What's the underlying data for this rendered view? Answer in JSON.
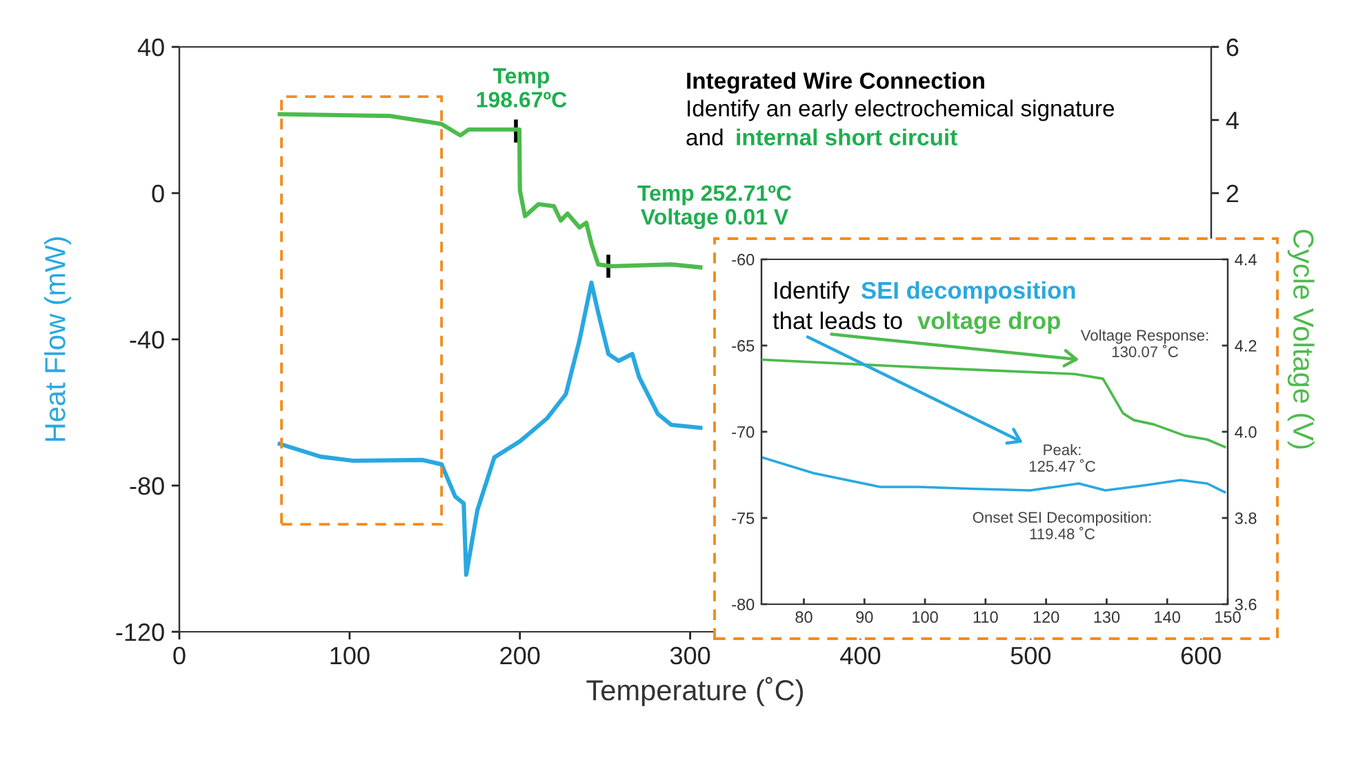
{
  "chart_data": [
    {
      "type": "line",
      "xlabel": "Temperature (˚C)",
      "ylabel": "Heat Flow (mW)",
      "y2label": "Cycle Voltage (V)",
      "xlim": [
        0,
        606
      ],
      "xticks": [
        0,
        100,
        200,
        300,
        400,
        500,
        600
      ],
      "ylim": [
        -120,
        40
      ],
      "yticks": [
        -120,
        -80,
        -40,
        0,
        40
      ],
      "y2lim": [
        -10,
        6
      ],
      "y2ticks": [
        2,
        4,
        6
      ],
      "grid": false,
      "legend": false,
      "marker": "none",
      "line_style": "solid",
      "series": [
        {
          "color": "#29a8e0",
          "x": [
            59,
            83,
            102,
            143,
            154,
            162,
            167,
            168.5,
            175,
            185,
            200,
            216,
            227,
            235,
            242,
            246,
            252,
            258,
            266,
            270,
            281,
            289,
            306
          ],
          "values": [
            -68.6,
            -72.1,
            -73.2,
            -73.0,
            -74.2,
            -83,
            -84.9,
            -104.4,
            -86.8,
            -72.3,
            -67.9,
            -61.6,
            -55,
            -40.3,
            -24.5,
            -32.7,
            -44,
            -45.9,
            -44,
            -50.3,
            -60.4,
            -63.4,
            -64.2
          ]
        },
        {
          "color": "#4cbb4c",
          "axis": "y2",
          "x": [
            59,
            124,
            154,
            165,
            170,
            192,
            199.7,
            200,
            203,
            211,
            220,
            224,
            228,
            235,
            239,
            242,
            246,
            254,
            289,
            306
          ],
          "values": [
            4.16,
            4.11,
            3.89,
            3.58,
            3.74,
            3.74,
            3.74,
            2.08,
            1.37,
            1.7,
            1.64,
            1.25,
            1.44,
            1.06,
            1.19,
            0.62,
            0.05,
            0.0,
            0.05,
            -0.03
          ]
        }
      ],
      "annotations": [
        "Integrated Wire Connection",
        "Identify an early electrochemical signature",
        "and",
        "internal short circuit",
        "Temp\n198.67ºC",
        "Temp 252.71ºC\nVoltage 0.01 V"
      ]
    },
    {
      "type": "line",
      "xlim": [
        73,
        150
      ],
      "xticks": [
        80,
        90,
        100,
        110,
        120,
        130,
        140,
        150
      ],
      "ylim": [
        -80,
        -60
      ],
      "yticks": [
        -80,
        -75,
        -70,
        -65,
        -60
      ],
      "y2lim": [
        3.6,
        4.4
      ],
      "y2ticks": [
        3.6,
        3.8,
        {
          "value": 4,
          "label": "4.0"
        },
        4.2,
        4.4
      ],
      "grid": false,
      "legend": false,
      "marker": "none",
      "line_style": "solid",
      "series": [
        {
          "color": "#29a8e0",
          "x": [
            73.2,
            81.6,
            92.6,
            99.1,
            107.2,
            117.4,
            125.4,
            129.8,
            136.4,
            142.2,
            146.6,
            149.5
          ],
          "values": [
            -71.5,
            -72.4,
            -73.2,
            -73.2,
            -73.3,
            -73.4,
            -73.0,
            -73.4,
            -73.1,
            -72.8,
            -73.0,
            -73.5
          ]
        },
        {
          "color": "#4cbb4c",
          "axis": "y2",
          "x": [
            73.2,
            99.9,
            124.7,
            129.4,
            132.7,
            134.5,
            137.8,
            142.9,
            146.6,
            149.5
          ],
          "values": [
            4.167,
            4.149,
            4.134,
            4.123,
            4.043,
            4.027,
            4.017,
            3.991,
            3.982,
            3.965
          ]
        }
      ],
      "annotations": [
        "Identify",
        "SEI decomposition",
        "that leads to",
        "voltage drop",
        "Voltage Response:\n130.07 ˚C",
        "Peak:\n125.47 ˚C",
        "Onset SEI Decomposition:\n119.48 ˚C"
      ]
    }
  ]
}
